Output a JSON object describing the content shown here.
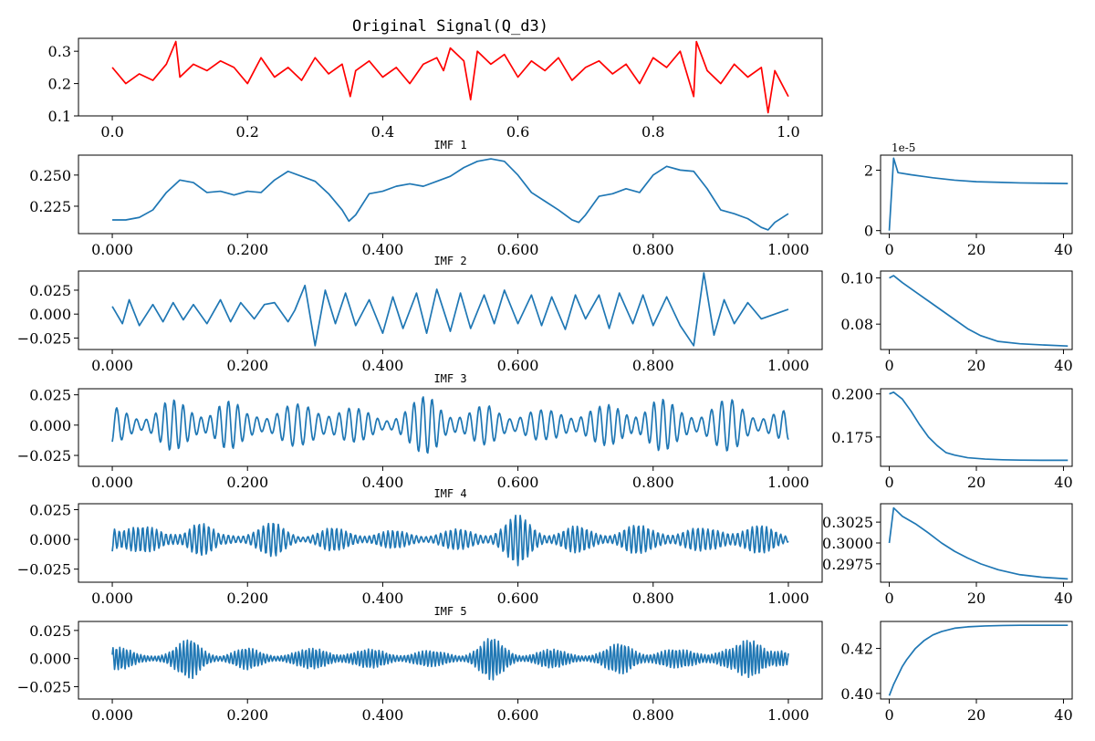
{
  "chart_data": [
    {
      "id": "original",
      "type": "line",
      "title": "Original Signal(Q_d3)",
      "color": "#ff0000",
      "xlim": [
        -0.05,
        1.05
      ],
      "ylim": [
        0.1,
        0.34
      ],
      "x_ticks": [
        0.0,
        0.2,
        0.4,
        0.6,
        0.8,
        1.0
      ],
      "x_tick_labels": [
        "0.0",
        "0.2",
        "0.4",
        "0.6",
        "0.8",
        "1.0"
      ],
      "y_ticks": [
        0.1,
        0.2,
        0.3
      ],
      "y_tick_labels": [
        "0.1",
        "0.2",
        "0.3"
      ],
      "x": [
        0.0,
        0.02,
        0.04,
        0.06,
        0.08,
        0.094,
        0.1,
        0.12,
        0.14,
        0.16,
        0.18,
        0.2,
        0.22,
        0.24,
        0.26,
        0.28,
        0.3,
        0.32,
        0.34,
        0.352,
        0.36,
        0.38,
        0.4,
        0.42,
        0.44,
        0.46,
        0.48,
        0.49,
        0.5,
        0.52,
        0.53,
        0.54,
        0.56,
        0.58,
        0.6,
        0.62,
        0.64,
        0.66,
        0.68,
        0.7,
        0.72,
        0.74,
        0.76,
        0.78,
        0.8,
        0.82,
        0.84,
        0.86,
        0.864,
        0.88,
        0.9,
        0.92,
        0.94,
        0.96,
        0.97,
        0.98,
        1.0
      ],
      "values": [
        0.25,
        0.2,
        0.23,
        0.21,
        0.26,
        0.33,
        0.22,
        0.26,
        0.24,
        0.27,
        0.25,
        0.2,
        0.28,
        0.22,
        0.25,
        0.21,
        0.28,
        0.23,
        0.26,
        0.16,
        0.24,
        0.27,
        0.22,
        0.25,
        0.2,
        0.26,
        0.28,
        0.24,
        0.31,
        0.27,
        0.15,
        0.3,
        0.26,
        0.29,
        0.22,
        0.27,
        0.24,
        0.28,
        0.21,
        0.25,
        0.27,
        0.23,
        0.26,
        0.2,
        0.28,
        0.25,
        0.3,
        0.16,
        0.33,
        0.24,
        0.2,
        0.26,
        0.22,
        0.25,
        0.11,
        0.24,
        0.16
      ]
    },
    {
      "id": "imf1",
      "type": "line",
      "title": "IMF 1",
      "color": "#1f77b4",
      "xlim": [
        -0.05,
        1.05
      ],
      "ylim": [
        0.203,
        0.266
      ],
      "x_ticks": [
        0.0,
        0.2,
        0.4,
        0.6,
        0.8,
        1.0
      ],
      "x_tick_labels": [
        "0.000",
        "0.200",
        "0.400",
        "0.600",
        "0.800",
        "1.000"
      ],
      "y_ticks": [
        0.225,
        0.25
      ],
      "y_tick_labels": [
        "0.225",
        "0.250"
      ],
      "x": [
        0.0,
        0.02,
        0.04,
        0.06,
        0.08,
        0.1,
        0.12,
        0.14,
        0.16,
        0.18,
        0.2,
        0.22,
        0.24,
        0.26,
        0.28,
        0.3,
        0.32,
        0.34,
        0.35,
        0.36,
        0.38,
        0.4,
        0.42,
        0.44,
        0.46,
        0.48,
        0.5,
        0.52,
        0.54,
        0.56,
        0.58,
        0.6,
        0.62,
        0.64,
        0.66,
        0.68,
        0.69,
        0.7,
        0.72,
        0.74,
        0.76,
        0.78,
        0.8,
        0.82,
        0.84,
        0.86,
        0.88,
        0.9,
        0.92,
        0.94,
        0.96,
        0.97,
        0.98,
        1.0
      ],
      "values": [
        0.214,
        0.214,
        0.216,
        0.222,
        0.236,
        0.246,
        0.244,
        0.236,
        0.237,
        0.234,
        0.237,
        0.236,
        0.246,
        0.253,
        0.249,
        0.245,
        0.235,
        0.222,
        0.213,
        0.218,
        0.235,
        0.237,
        0.241,
        0.243,
        0.241,
        0.245,
        0.249,
        0.256,
        0.261,
        0.263,
        0.261,
        0.25,
        0.236,
        0.229,
        0.222,
        0.214,
        0.212,
        0.218,
        0.233,
        0.235,
        0.239,
        0.236,
        0.25,
        0.257,
        0.254,
        0.253,
        0.239,
        0.222,
        0.219,
        0.215,
        0.208,
        0.206,
        0.212,
        0.219
      ]
    },
    {
      "id": "imf2",
      "type": "line",
      "title": "IMF 2",
      "color": "#1f77b4",
      "xlim": [
        -0.05,
        1.05
      ],
      "ylim": [
        -0.037,
        0.045
      ],
      "x_ticks": [
        0.0,
        0.2,
        0.4,
        0.6,
        0.8,
        1.0
      ],
      "x_tick_labels": [
        "0.000",
        "0.200",
        "0.400",
        "0.600",
        "0.800",
        "1.000"
      ],
      "y_ticks": [
        -0.025,
        0.0,
        0.025
      ],
      "y_tick_labels": [
        "−0.025",
        "0.000",
        "0.025"
      ],
      "x": [
        0.0,
        0.015,
        0.025,
        0.04,
        0.06,
        0.075,
        0.09,
        0.105,
        0.12,
        0.14,
        0.16,
        0.175,
        0.19,
        0.21,
        0.225,
        0.24,
        0.26,
        0.27,
        0.285,
        0.3,
        0.315,
        0.33,
        0.345,
        0.36,
        0.38,
        0.4,
        0.415,
        0.43,
        0.45,
        0.465,
        0.48,
        0.5,
        0.515,
        0.53,
        0.55,
        0.565,
        0.58,
        0.6,
        0.62,
        0.635,
        0.65,
        0.67,
        0.685,
        0.7,
        0.72,
        0.735,
        0.75,
        0.77,
        0.785,
        0.8,
        0.82,
        0.84,
        0.86,
        0.875,
        0.89,
        0.905,
        0.92,
        0.94,
        0.96,
        0.98,
        1.0
      ],
      "values": [
        0.008,
        -0.01,
        0.015,
        -0.012,
        0.01,
        -0.008,
        0.012,
        -0.006,
        0.01,
        -0.01,
        0.015,
        -0.008,
        0.012,
        -0.005,
        0.01,
        0.012,
        -0.008,
        0.004,
        0.03,
        -0.033,
        0.025,
        -0.01,
        0.022,
        -0.012,
        0.015,
        -0.02,
        0.018,
        -0.015,
        0.022,
        -0.02,
        0.026,
        -0.018,
        0.022,
        -0.015,
        0.02,
        -0.01,
        0.025,
        -0.01,
        0.02,
        -0.012,
        0.018,
        -0.016,
        0.02,
        -0.005,
        0.02,
        -0.015,
        0.022,
        -0.01,
        0.02,
        -0.012,
        0.018,
        -0.012,
        -0.033,
        0.043,
        -0.022,
        0.015,
        -0.01,
        0.012,
        -0.005,
        0.0,
        0.005
      ]
    },
    {
      "id": "imf3",
      "type": "line",
      "title": "IMF 3",
      "color": "#1f77b4",
      "amplitude": [
        0.015,
        0.013,
        0.022,
        0.018,
        0.026,
        0.012,
        0.02,
        0.017,
        0.024,
        0.014,
        0.01,
        0.018,
        0.03,
        0.012,
        0.018,
        0.016,
        0.012,
        0.018,
        0.016,
        0.02,
        0.025,
        0.016,
        0.02,
        0.022,
        0.015,
        0.012
      ],
      "cycles": 70,
      "xlim": [
        -0.05,
        1.05
      ],
      "ylim": [
        -0.034,
        0.03
      ],
      "x_ticks": [
        0.0,
        0.2,
        0.4,
        0.6,
        0.8,
        1.0
      ],
      "x_tick_labels": [
        "0.000",
        "0.200",
        "0.400",
        "0.600",
        "0.800",
        "1.000"
      ],
      "y_ticks": [
        -0.025,
        0.0,
        0.025
      ],
      "y_tick_labels": [
        "−0.025",
        "0.000",
        "0.025"
      ]
    },
    {
      "id": "imf4",
      "type": "line",
      "title": "IMF 4",
      "color": "#1f77b4",
      "amplitude": [
        0.028,
        0.012,
        0.008,
        0.02,
        0.005,
        0.01,
        0.015,
        0.006,
        0.01,
        0.009,
        0.008,
        0.007,
        0.008,
        0.009,
        0.01,
        0.022,
        0.01,
        0.012,
        0.008,
        0.014,
        0.01,
        0.012,
        0.009,
        0.016,
        0.012,
        0.006
      ],
      "cycles": 140,
      "xlim": [
        -0.05,
        1.05
      ],
      "ylim": [
        -0.036,
        0.03
      ],
      "x_ticks": [
        0.0,
        0.2,
        0.4,
        0.6,
        0.8,
        1.0
      ],
      "x_tick_labels": [
        "0.000",
        "0.200",
        "0.400",
        "0.600",
        "0.800",
        "1.000"
      ],
      "y_ticks": [
        -0.025,
        0.0,
        0.025
      ],
      "y_tick_labels": [
        "−0.025",
        "0.000",
        "0.025"
      ]
    },
    {
      "id": "imf5",
      "type": "line",
      "title": "IMF 5",
      "color": "#1f77b4",
      "amplitude": [
        0.012,
        0.006,
        0.008,
        0.02,
        0.006,
        0.01,
        0.007,
        0.008,
        0.012,
        0.008,
        0.009,
        0.008,
        0.007,
        0.008,
        0.02,
        0.008,
        0.009,
        0.007,
        0.008,
        0.016,
        0.01,
        0.008,
        0.012,
        0.01,
        0.03,
        0.006
      ],
      "cycles": 190,
      "xlim": [
        -0.05,
        1.05
      ],
      "ylim": [
        -0.036,
        0.033
      ],
      "x_ticks": [
        0.0,
        0.2,
        0.4,
        0.6,
        0.8,
        1.0
      ],
      "x_tick_labels": [
        "0.000",
        "0.200",
        "0.400",
        "0.600",
        "0.800",
        "1.000"
      ],
      "y_ticks": [
        -0.025,
        0.0,
        0.025
      ],
      "y_tick_labels": [
        "−0.025",
        "0.000",
        "0.025"
      ]
    },
    {
      "id": "conv1",
      "type": "line",
      "title": "",
      "color": "#1f77b4",
      "offset_text": "1e-5",
      "xlim": [
        -2,
        42
      ],
      "ylim": [
        -0.1,
        2.5
      ],
      "x_ticks": [
        0,
        20,
        40
      ],
      "x_tick_labels": [
        "0",
        "20",
        "40"
      ],
      "y_ticks": [
        0,
        2
      ],
      "y_tick_labels": [
        "0",
        "2"
      ],
      "x": [
        0,
        1,
        2,
        5,
        10,
        15,
        20,
        25,
        30,
        35,
        41
      ],
      "values": [
        0.0,
        2.4,
        1.92,
        1.85,
        1.75,
        1.67,
        1.62,
        1.6,
        1.58,
        1.57,
        1.56
      ]
    },
    {
      "id": "conv2",
      "type": "line",
      "title": "",
      "color": "#1f77b4",
      "xlim": [
        -2,
        42
      ],
      "ylim": [
        0.069,
        0.103
      ],
      "x_ticks": [
        0,
        20,
        40
      ],
      "x_tick_labels": [
        "0",
        "20",
        "40"
      ],
      "y_ticks": [
        0.08,
        0.1
      ],
      "y_tick_labels": [
        "0.08",
        "0.10"
      ],
      "x": [
        0,
        1,
        3,
        6,
        9,
        12,
        15,
        18,
        21,
        25,
        30,
        35,
        41
      ],
      "values": [
        0.1,
        0.101,
        0.098,
        0.094,
        0.09,
        0.086,
        0.082,
        0.078,
        0.075,
        0.0725,
        0.0715,
        0.071,
        0.0705
      ]
    },
    {
      "id": "conv3",
      "type": "line",
      "title": "",
      "color": "#1f77b4",
      "xlim": [
        -2,
        42
      ],
      "ylim": [
        0.158,
        0.203
      ],
      "x_ticks": [
        0,
        20,
        40
      ],
      "x_tick_labels": [
        "0",
        "20",
        "40"
      ],
      "y_ticks": [
        0.175,
        0.2
      ],
      "y_tick_labels": [
        "0.175",
        "0.200"
      ],
      "x": [
        0,
        1,
        3,
        5,
        7,
        9,
        11,
        13,
        15,
        18,
        22,
        26,
        30,
        35,
        41
      ],
      "values": [
        0.2,
        0.201,
        0.197,
        0.19,
        0.182,
        0.175,
        0.17,
        0.166,
        0.1645,
        0.163,
        0.1622,
        0.1618,
        0.1616,
        0.1615,
        0.1615
      ]
    },
    {
      "id": "conv4",
      "type": "line",
      "title": "",
      "color": "#1f77b4",
      "xlim": [
        -2,
        42
      ],
      "ylim": [
        0.2953,
        0.3047
      ],
      "x_ticks": [
        0,
        20,
        40
      ],
      "x_tick_labels": [
        "0",
        "20",
        "40"
      ],
      "y_ticks": [
        0.2975,
        0.3,
        0.3025
      ],
      "y_tick_labels": [
        "0.2975",
        "0.3000",
        "0.3025"
      ],
      "x": [
        0,
        1,
        3,
        6,
        9,
        12,
        15,
        18,
        21,
        25,
        30,
        35,
        41
      ],
      "values": [
        0.3,
        0.3042,
        0.3032,
        0.3023,
        0.3012,
        0.3,
        0.299,
        0.2982,
        0.2975,
        0.2968,
        0.2962,
        0.2959,
        0.2957
      ]
    },
    {
      "id": "conv5",
      "type": "line",
      "title": "",
      "color": "#1f77b4",
      "xlim": [
        -2,
        42
      ],
      "ylim": [
        0.3975,
        0.432
      ],
      "x_ticks": [
        0,
        20,
        40
      ],
      "x_tick_labels": [
        "0",
        "20",
        "40"
      ],
      "y_ticks": [
        0.4,
        0.42
      ],
      "y_tick_labels": [
        "0.40",
        "0.42"
      ],
      "x": [
        0,
        1,
        2,
        3,
        4,
        6,
        8,
        10,
        12,
        15,
        18,
        22,
        26,
        30,
        35,
        41
      ],
      "values": [
        0.399,
        0.404,
        0.408,
        0.412,
        0.415,
        0.42,
        0.4235,
        0.426,
        0.4275,
        0.429,
        0.4296,
        0.43,
        0.4302,
        0.4303,
        0.4303,
        0.4303
      ]
    }
  ]
}
